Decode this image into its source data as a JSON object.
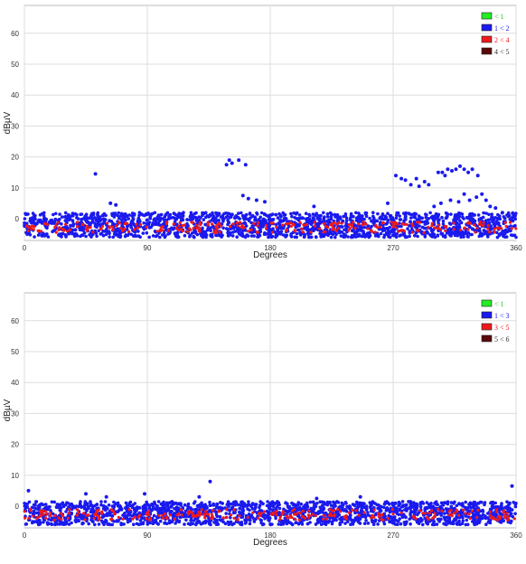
{
  "chart_data": [
    {
      "type": "scatter",
      "xlabel": "Degrees",
      "ylabel": "dBµV",
      "xlim": [
        0,
        360
      ],
      "ylim": [
        -7,
        69
      ],
      "xticks": [
        "0",
        "90",
        "180",
        "270",
        "360"
      ],
      "yticks": [
        "0",
        "10",
        "20",
        "30",
        "40",
        "50",
        "60"
      ],
      "grid": true,
      "legend_position": "top-right",
      "legend": [
        {
          "label": "< 1",
          "color": "#22ee22",
          "text_color": "#22cc22"
        },
        {
          "label": "1 < 2",
          "color": "#1a1aee",
          "text_color": "#1a1aee"
        },
        {
          "label": "2 < 4",
          "color": "#ee1a1a",
          "text_color": "#ee1a1a"
        },
        {
          "label": "4 < 5",
          "color": "#5a0a0a",
          "text_color": "#333333"
        }
      ],
      "series": [
        {
          "color": "#1a1aee",
          "points": [
            [
              52,
              14.5
            ],
            [
              148,
              17.5
            ],
            [
              150,
              19
            ],
            [
              152,
              18
            ],
            [
              157,
              19
            ],
            [
              162,
              17.5
            ],
            [
              160,
              7.5
            ],
            [
              164,
              6.5
            ],
            [
              170,
              6
            ],
            [
              176,
              5.5
            ],
            [
              63,
              5
            ],
            [
              67,
              4.5
            ],
            [
              212,
              4
            ],
            [
              266,
              5
            ],
            [
              272,
              14
            ],
            [
              276,
              13
            ],
            [
              279,
              12.5
            ],
            [
              283,
              11
            ],
            [
              287,
              13
            ],
            [
              289,
              10.5
            ],
            [
              293,
              12
            ],
            [
              296,
              11
            ],
            [
              303,
              15
            ],
            [
              306,
              15
            ],
            [
              308,
              14
            ],
            [
              310,
              16
            ],
            [
              313,
              15.5
            ],
            [
              316,
              16
            ],
            [
              319,
              17
            ],
            [
              322,
              16
            ],
            [
              325,
              15
            ],
            [
              328,
              16
            ],
            [
              332,
              14
            ],
            [
              300,
              4
            ],
            [
              305,
              5
            ],
            [
              312,
              6
            ],
            [
              318,
              5.5
            ],
            [
              322,
              8
            ],
            [
              326,
              6
            ],
            [
              331,
              7
            ],
            [
              335,
              8
            ],
            [
              338,
              6
            ],
            [
              341,
              4
            ],
            [
              345,
              3.5
            ],
            [
              350,
              2
            ],
            [
              355,
              1
            ]
          ]
        }
      ],
      "noise_band": {
        "x_range": [
          0,
          360
        ],
        "y_range": [
          -6,
          2
        ]
      }
    },
    {
      "type": "scatter",
      "xlabel": "Degrees",
      "ylabel": "dBµV",
      "xlim": [
        0,
        360
      ],
      "ylim": [
        -7,
        69
      ],
      "xticks": [
        "0",
        "90",
        "180",
        "270",
        "360"
      ],
      "yticks": [
        "0",
        "10",
        "20",
        "30",
        "40",
        "50",
        "60"
      ],
      "grid": true,
      "legend_position": "top-right",
      "legend": [
        {
          "label": "< 1",
          "color": "#22ee22",
          "text_color": "#22cc22"
        },
        {
          "label": "1 < 3",
          "color": "#1a1aee",
          "text_color": "#1a1aee"
        },
        {
          "label": "3 < 5",
          "color": "#ee1a1a",
          "text_color": "#ee1a1a"
        },
        {
          "label": "5 < 6",
          "color": "#5a0a0a",
          "text_color": "#333333"
        }
      ],
      "series": [
        {
          "color": "#1a1aee",
          "points": [
            [
              3,
              5
            ],
            [
              45,
              4
            ],
            [
              88,
              4
            ],
            [
              136,
              8
            ],
            [
              357,
              6.5
            ],
            [
              246,
              3
            ],
            [
              128,
              3
            ],
            [
              214,
              2.5
            ],
            [
              60,
              3
            ]
          ]
        }
      ],
      "noise_band": {
        "x_range": [
          0,
          360
        ],
        "y_range": [
          -6,
          1.5
        ]
      }
    }
  ]
}
